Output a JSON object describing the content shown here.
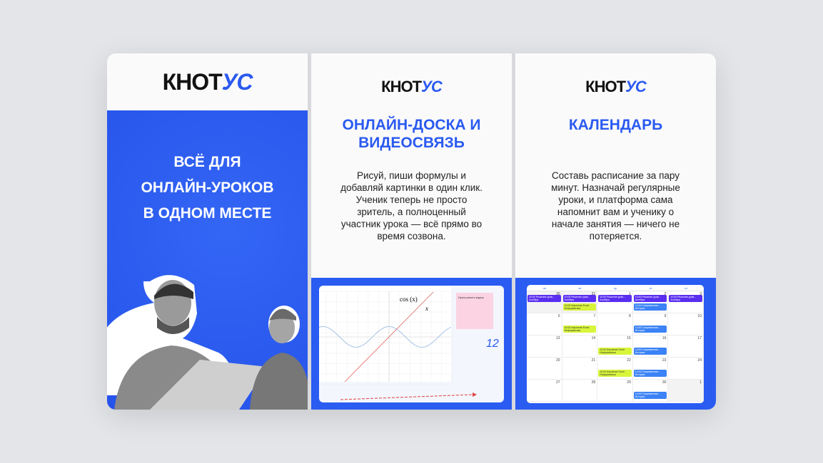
{
  "brand": {
    "logo_main": "КНОТ",
    "logo_accent": "УС",
    "accent": "#2a5af0"
  },
  "panel1": {
    "headline_lines": [
      "ВСЁ ДЛЯ",
      "ОНЛАЙН-УРОКОВ",
      "В ОДНОМ МЕСТЕ"
    ]
  },
  "panel2": {
    "title_lines": [
      "ОНЛАЙН-ДОСКА И",
      "ВИДЕОСВЯЗЬ"
    ],
    "desc_lines": [
      "Рисуй, пиши формулы и",
      "добавляй картинки в один клик.",
      "Ученик теперь не просто",
      "зритель, а полноценный",
      "участник урока — всё прямо во",
      "время созвона."
    ],
    "board": {
      "func_label": "cos (x)",
      "line_label": "x",
      "sticky_note": "Нужно решить задачу",
      "handwritten": "12"
    }
  },
  "panel3": {
    "title": "КАЛЕНДАРЬ",
    "desc_lines": [
      "Составь расписание за пару",
      "минут. Назначай регулярные",
      "уроки, и платформа сама",
      "напомнит вам и ученику о",
      "начале занятия — ничего не",
      "потеряется."
    ],
    "calendar": {
      "weekdays": [
        "пн",
        "вт",
        "ср",
        "чт",
        "пт"
      ],
      "days": [
        "30",
        "31",
        "1",
        "2",
        "3",
        "6",
        "7",
        "8",
        "9",
        "10",
        "13",
        "14",
        "15",
        "16",
        "17",
        "20",
        "21",
        "22",
        "23",
        "24",
        "27",
        "28",
        "29",
        "30",
        "1"
      ],
      "gray_days": [
        0,
        1,
        24
      ],
      "events": [
        {
          "cell": 0,
          "slot": 0,
          "color": "purple",
          "title": "10:00 Решение урав...",
          "sub": "Алгебра"
        },
        {
          "cell": 1,
          "slot": 0,
          "color": "purple",
          "title": "10:00 Решение урав...",
          "sub": "Алгебра"
        },
        {
          "cell": 1,
          "slot": 1,
          "color": "lime",
          "title": "10:00 Изучение Excel",
          "sub": "Информатика"
        },
        {
          "cell": 2,
          "slot": 0,
          "color": "purple",
          "title": "10:00 Решение урав...",
          "sub": "Алгебра"
        },
        {
          "cell": 3,
          "slot": 0,
          "color": "purple",
          "title": "10:00 Решение урав...",
          "sub": "Алгебра"
        },
        {
          "cell": 3,
          "slot": 1,
          "color": "bl",
          "title": "14:00 Современная ...",
          "sub": "История"
        },
        {
          "cell": 4,
          "slot": 0,
          "color": "purple",
          "title": "10:00 Решение урав...",
          "sub": "Алгебра"
        },
        {
          "cell": 6,
          "slot": 1,
          "color": "lime",
          "title": "10:00 Изучение Excel",
          "sub": "Информатика"
        },
        {
          "cell": 8,
          "slot": 1,
          "color": "bl",
          "title": "14:00 Современная ...",
          "sub": "История"
        },
        {
          "cell": 12,
          "slot": 1,
          "color": "lime",
          "title": "10:00 Изучение Excel",
          "sub": "Информатика"
        },
        {
          "cell": 13,
          "slot": 1,
          "color": "bl",
          "title": "14:00 Современная ...",
          "sub": "История"
        },
        {
          "cell": 17,
          "slot": 1,
          "color": "lime",
          "title": "10:00 Изучение Excel",
          "sub": "Информатика"
        },
        {
          "cell": 18,
          "slot": 1,
          "color": "bl",
          "title": "14:00 Современная ...",
          "sub": "История"
        },
        {
          "cell": 23,
          "slot": 1,
          "color": "bl",
          "title": "14:00 Современная ...",
          "sub": "История"
        }
      ]
    }
  }
}
